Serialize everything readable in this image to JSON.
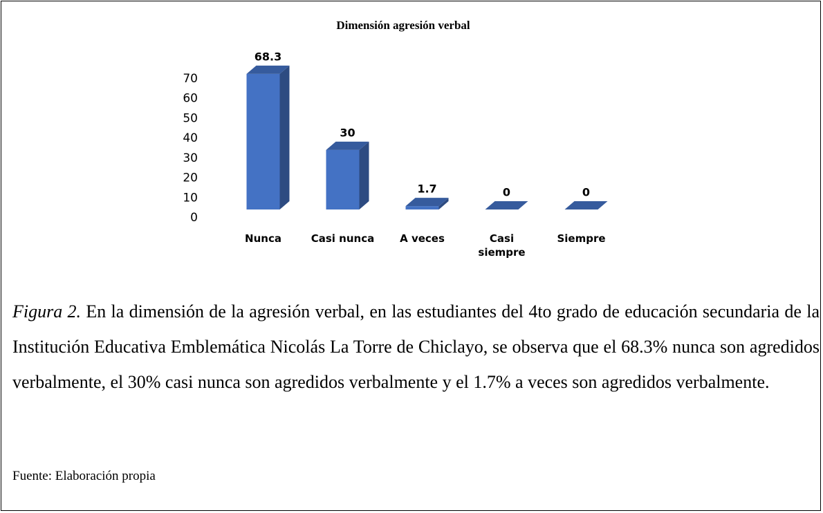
{
  "chart_data": {
    "type": "bar",
    "title": "Dimensión agresión verbal",
    "categories": [
      "Nunca",
      "Casi nunca",
      "A veces",
      "Casi siempre",
      "Siempre"
    ],
    "values": [
      68.3,
      30,
      1.7,
      0,
      0
    ],
    "color": "#4472c4",
    "ylim": [
      0,
      70
    ],
    "yticks": [
      0,
      10,
      20,
      30,
      40,
      50,
      60,
      70
    ]
  },
  "caption": {
    "label": "Figura 2.",
    "text": " En la dimensión de la agresión verbal, en las estudiantes del 4to grado de educación secundaria de la Institución Educativa Emblemática Nicolás La Torre de Chiclayo, se observa que el 68.3% nunca son agredidos verbalmente, el 30% casi nunca son agredidos verbalmente y el 1.7% a veces son agredidos verbalmente."
  },
  "source": "Fuente: Elaboración propia"
}
